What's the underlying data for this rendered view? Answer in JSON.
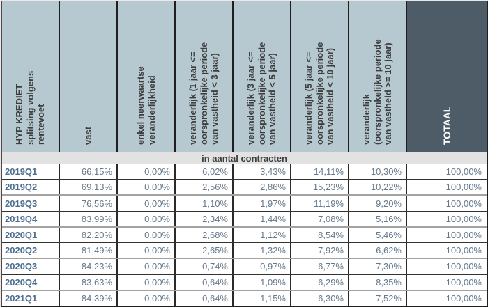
{
  "page": {
    "background": "#e9e9e9"
  },
  "table": {
    "corner_header": {
      "lines": [
        "HYP KREDIET",
        "splitsing volgens",
        "rentevoet"
      ]
    },
    "columns": [
      {
        "id": "vast",
        "lines": [
          "vast"
        ]
      },
      {
        "id": "enkel-neerwaartse-veranderlijkheid",
        "lines": [
          "enkel neerwaartse",
          "veranderlijkheid"
        ]
      },
      {
        "id": "veranderlijk-1-3-jaar",
        "lines": [
          "veranderlijk (1 jaar <=",
          "oorspronkelijke periode",
          "van vastheid < 3 jaar)"
        ]
      },
      {
        "id": "veranderlijk-3-5-jaar",
        "lines": [
          "veranderlijk (3 jaar <=",
          "oorspronkelijke periode",
          "van vastheid < 5 jaar)"
        ]
      },
      {
        "id": "veranderlijk-5-10-jaar",
        "lines": [
          "veranderlijk (5 jaar <=",
          "oorspronkelijke periode",
          "van vastheid < 10 jaar)"
        ]
      },
      {
        "id": "veranderlijk-10-plus-jaar",
        "lines": [
          "veranderlijk",
          "(oorspronkelijke periode",
          "van vastheid >= 10 jaar)"
        ]
      },
      {
        "id": "totaal",
        "lines": [
          "TOTAAL"
        ]
      }
    ],
    "section_label": "in aantal contracten",
    "rows": [
      {
        "label": "2019Q1",
        "values": [
          "66,15%",
          "0,00%",
          "6,02%",
          "3,43%",
          "14,11%",
          "10,30%",
          "100,00%"
        ]
      },
      {
        "label": "2019Q2",
        "values": [
          "69,13%",
          "0,00%",
          "2,56%",
          "2,86%",
          "15,23%",
          "10,22%",
          "100,00%"
        ]
      },
      {
        "label": "2019Q3",
        "values": [
          "76,56%",
          "0,00%",
          "1,10%",
          "1,97%",
          "11,19%",
          "9,20%",
          "100,00%"
        ]
      },
      {
        "label": "2019Q4",
        "values": [
          "83,99%",
          "0,00%",
          "2,34%",
          "1,44%",
          "7,08%",
          "5,16%",
          "100,00%"
        ]
      },
      {
        "label": "2020Q1",
        "values": [
          "82,20%",
          "0,00%",
          "2,68%",
          "1,12%",
          "8,54%",
          "5,46%",
          "100,00%"
        ]
      },
      {
        "label": "2020Q2",
        "values": [
          "81,49%",
          "0,00%",
          "2,65%",
          "1,32%",
          "7,92%",
          "6,62%",
          "100,00%"
        ]
      },
      {
        "label": "2020Q3",
        "values": [
          "84,23%",
          "0,00%",
          "0,74%",
          "0,97%",
          "6,77%",
          "7,30%",
          "100,00%"
        ]
      },
      {
        "label": "2020Q4",
        "values": [
          "83,63%",
          "0,00%",
          "0,64%",
          "1,09%",
          "6,29%",
          "8,35%",
          "100,00%"
        ]
      },
      {
        "label": "2021Q1",
        "values": [
          "84,39%",
          "0,00%",
          "0,64%",
          "1,15%",
          "6,30%",
          "7,52%",
          "100,00%"
        ]
      }
    ]
  },
  "colors": {
    "header_bg": "#b6c8d0",
    "totaal_header_bg": "#4d5c66",
    "header_text": "#3d3d3d",
    "totaal_header_text": "#ffffff",
    "band_bg": "#e2e2e2",
    "row_bg": "#ffffff",
    "label_text": "#4f6f91",
    "value_text": "#64798c",
    "grid_dark": "#1f1f1f",
    "grid_gray": "#a2a2a2"
  }
}
